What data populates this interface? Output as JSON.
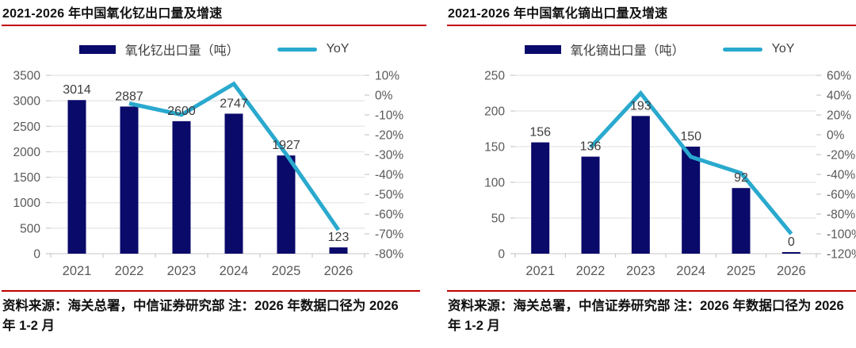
{
  "colors": {
    "bar": "#0a0a6b",
    "line": "#2aa9ce",
    "grid": "#e4e4e4",
    "axis_line": "#d0d0d0",
    "tick": "#bfbfbf",
    "axis_text": "#595959",
    "data_label": "#3d3d3d",
    "title_rule": "#c00000"
  },
  "panels": [
    {
      "title": "2021-2026 年中国氧化钇出口量及增速",
      "source_note": "资料来源：海关总署，中信证券研究部  注：2026 年数据口径为 2026 年 1-2 月"
    },
    {
      "title": "2021-2026 年中国氧化镝出口量及增速",
      "source_note": "资料来源：海关总署，中信证券研究部  注：2026 年数据口径为 2026 年 1-2 月"
    }
  ],
  "chart_data": [
    {
      "type": "bar",
      "subtype": "bar-line-combo",
      "title": "2021-2026 年中国氧化钇出口量及增速",
      "categories": [
        "2021",
        "2022",
        "2023",
        "2024",
        "2025",
        "2026"
      ],
      "series": [
        {
          "name": "氧化钇出口量（吨）",
          "type": "bar",
          "axis": "left",
          "values": [
            3014,
            2887,
            2600,
            2747,
            1927,
            123
          ],
          "data_labels": [
            "3014",
            "2887",
            "2600",
            "2747",
            "1927",
            "123"
          ]
        },
        {
          "name": "YoY",
          "type": "line",
          "axis": "right",
          "values": [
            null,
            -4.2,
            -9.9,
            5.7,
            -29.8,
            -68
          ]
        }
      ],
      "left_axis": {
        "min": 0,
        "max": 3500,
        "step": 500,
        "tick_labels": [
          "3500",
          "3000",
          "2500",
          "2000",
          "1500",
          "1000",
          "500",
          "0"
        ]
      },
      "right_axis": {
        "min": -80,
        "max": 10,
        "step": 10,
        "tick_labels": [
          "10%",
          "0%",
          "-10%",
          "-20%",
          "-30%",
          "-40%",
          "-50%",
          "-60%",
          "-70%",
          "-80%"
        ]
      },
      "grid": true,
      "legend_position": "top"
    },
    {
      "type": "bar",
      "subtype": "bar-line-combo",
      "title": "2021-2026 年中国氧化镝出口量及增速",
      "categories": [
        "2021",
        "2022",
        "2023",
        "2024",
        "2025",
        "2026"
      ],
      "series": [
        {
          "name": "氧化镝出口量（吨）",
          "type": "bar",
          "axis": "left",
          "values": [
            156,
            136,
            193,
            150,
            92,
            0
          ],
          "data_labels": [
            "156",
            "136",
            "193",
            "150",
            "92",
            "0"
          ]
        },
        {
          "name": "YoY",
          "type": "line",
          "axis": "right",
          "values": [
            null,
            -12.8,
            41.9,
            -22.3,
            -38.7,
            -100
          ]
        }
      ],
      "left_axis": {
        "min": 0,
        "max": 250,
        "step": 50,
        "tick_labels": [
          "250",
          "200",
          "150",
          "100",
          "50",
          "0"
        ]
      },
      "right_axis": {
        "min": -120,
        "max": 60,
        "step": 20,
        "tick_labels": [
          "60%",
          "40%",
          "20%",
          "0%",
          "-20%",
          "-40%",
          "-60%",
          "-80%",
          "-100%",
          "-120%"
        ]
      },
      "grid": true,
      "legend_position": "top"
    }
  ]
}
